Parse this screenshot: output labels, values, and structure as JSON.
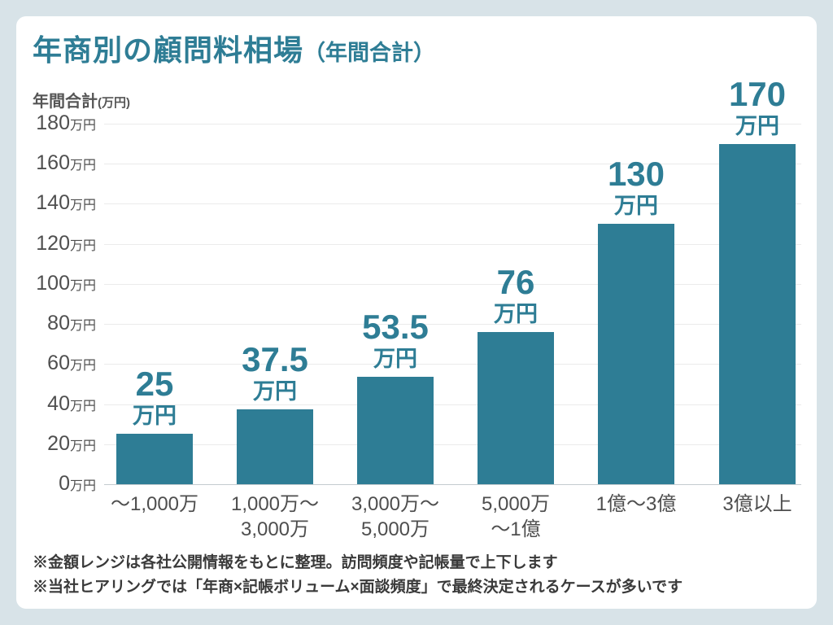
{
  "title": {
    "main": "年商別の顧問料相場",
    "sub": "（年間合計）"
  },
  "y_axis": {
    "label_main": "年間合計",
    "label_unit": "(万円)"
  },
  "chart_data": {
    "type": "bar",
    "title": "年商別の顧問料相場（年間合計）",
    "ylabel": "年間合計(万円)",
    "unit": "万円",
    "categories": [
      [
        "〜1,000万"
      ],
      [
        "1,000万〜",
        "3,000万"
      ],
      [
        "3,000万〜",
        "5,000万"
      ],
      [
        "5,000万",
        "〜1億"
      ],
      [
        "1億〜3億"
      ],
      [
        "3億以上"
      ]
    ],
    "values": [
      25,
      37.5,
      53.5,
      76,
      130,
      170
    ],
    "ylim": [
      0,
      180
    ],
    "ytick_step": 20,
    "bar_color": "#2e7d95",
    "grid": true,
    "legend_position": "none"
  },
  "footnotes": [
    "※金額レンジは各社公開情報をもとに整理。訪問頻度や記帳量で上下します",
    "※当社ヒアリングでは「年商×記帳ボリューム×面談頻度」で最終決定されるケースが多いです"
  ]
}
